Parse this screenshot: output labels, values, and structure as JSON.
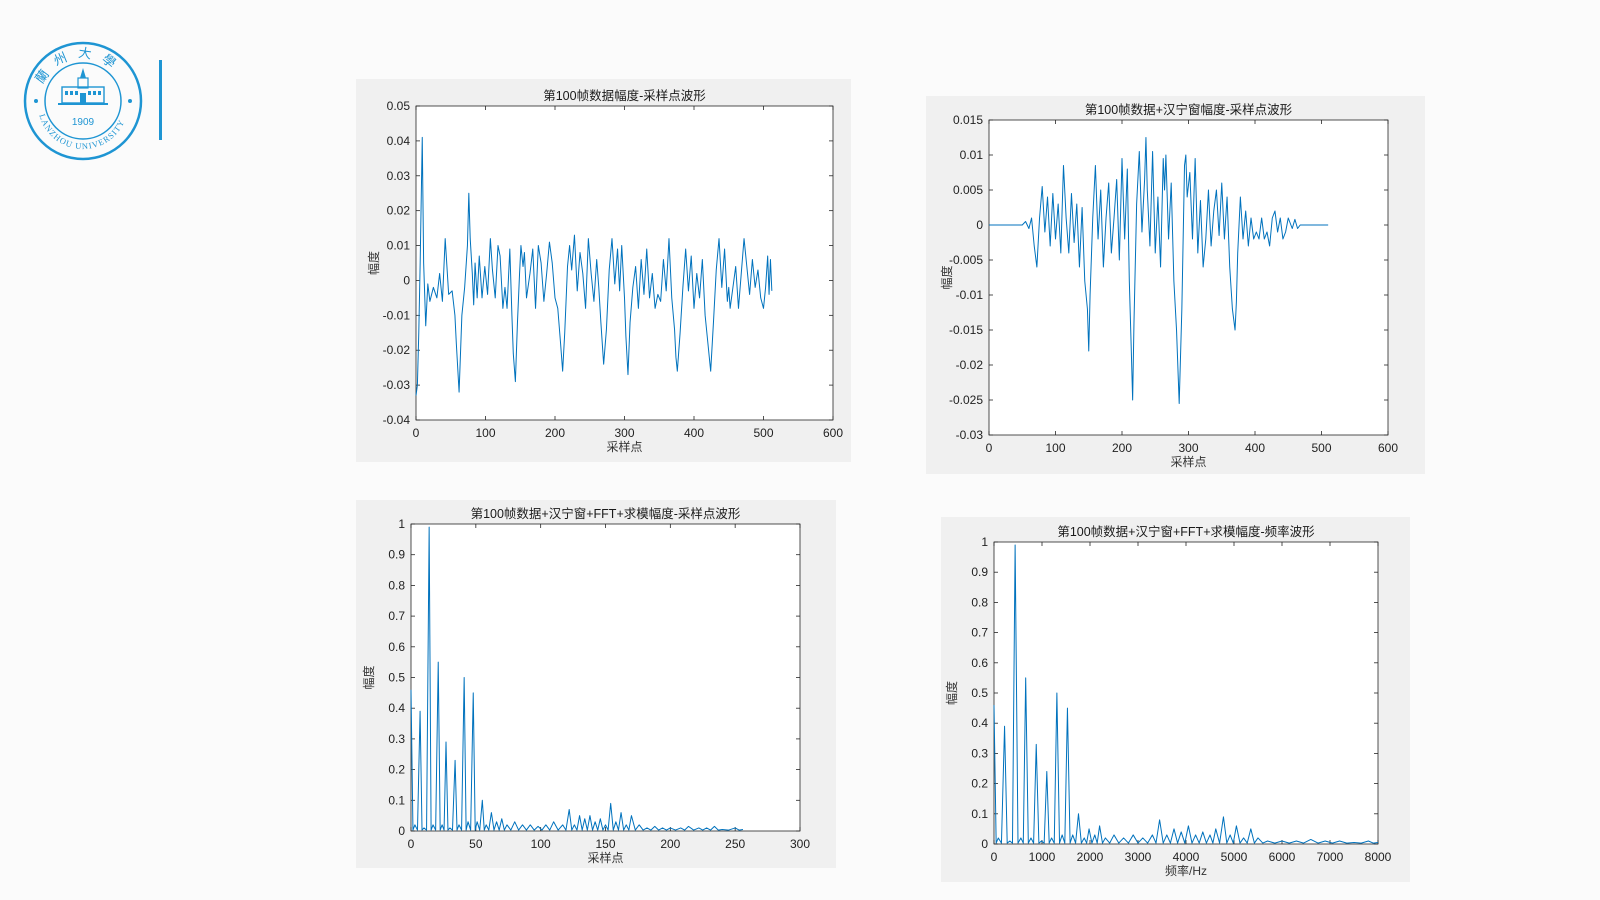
{
  "logo": {
    "year": "1909",
    "name_en": "LANZHOU UNIVERSITY",
    "name_cn": "蘭州大學",
    "color": "#1e95d3"
  },
  "line_color": "#0072bd",
  "chart_data": [
    {
      "type": "line",
      "title": "第100帧数据幅度-采样点波形",
      "xlabel": "采样点",
      "ylabel": "幅度",
      "xlim": [
        0,
        600
      ],
      "ylim": [
        -0.04,
        0.05
      ],
      "xticks": [
        "0",
        "100",
        "200",
        "300",
        "400",
        "500",
        "600"
      ],
      "yticks": [
        "-0.04",
        "-0.03",
        "-0.02",
        "-0.01",
        "0",
        "0.01",
        "0.02",
        "0.03",
        "0.04",
        "0.05"
      ],
      "series": [
        {
          "x": [
            0,
            2,
            4,
            6,
            9,
            11,
            14,
            17,
            20,
            25,
            30,
            34,
            38,
            42,
            47,
            52,
            56,
            58,
            62,
            66,
            70,
            74,
            76,
            78,
            81,
            83,
            85,
            88,
            91,
            95,
            99,
            103,
            107,
            110,
            114,
            118,
            121,
            125,
            128,
            131,
            135,
            138,
            140,
            143,
            146,
            149,
            151,
            154,
            156,
            159,
            164,
            168,
            172,
            176,
            180,
            184,
            188,
            192,
            196,
            200,
            204,
            208,
            211,
            214,
            218,
            221,
            224,
            228,
            232,
            236,
            240,
            244,
            248,
            252,
            256,
            260,
            263,
            266,
            270,
            274,
            278,
            282,
            286,
            290,
            293,
            296,
            300,
            302,
            305,
            308,
            312,
            316,
            320,
            324,
            328,
            332,
            336,
            340,
            344,
            348,
            352,
            356,
            360,
            364,
            368,
            372,
            374,
            376,
            380,
            384,
            388,
            392,
            396,
            400,
            404,
            408,
            412,
            416,
            420,
            424,
            428,
            432,
            436,
            440,
            444,
            448,
            450,
            452,
            456,
            460,
            464,
            468,
            472,
            476,
            480,
            484,
            488,
            492,
            496,
            500,
            503,
            506,
            508,
            510,
            512
          ],
          "y": [
            -0.033,
            -0.03,
            -0.015,
            0.005,
            0.041,
            0.005,
            -0.013,
            -0.001,
            -0.006,
            -0.002,
            -0.005,
            0.002,
            -0.006,
            0.012,
            -0.004,
            -0.003,
            -0.01,
            -0.018,
            -0.032,
            -0.01,
            -0.002,
            0.01,
            0.025,
            0.012,
            0.002,
            -0.007,
            0.005,
            -0.005,
            0.007,
            -0.005,
            0.004,
            -0.004,
            0.012,
            0.003,
            -0.005,
            0.01,
            0.007,
            -0.008,
            -0.002,
            -0.008,
            0.009,
            -0.01,
            -0.021,
            -0.029,
            -0.012,
            0.002,
            0.01,
            0.004,
            0.008,
            -0.005,
            0.002,
            0.009,
            -0.008,
            0.01,
            0.005,
            -0.006,
            0.002,
            0.011,
            0.005,
            -0.005,
            -0.008,
            -0.018,
            -0.026,
            -0.015,
            0.004,
            0.01,
            0.003,
            0.013,
            -0.003,
            0.008,
            0.002,
            -0.008,
            0.012,
            0.002,
            -0.006,
            0.006,
            -0.002,
            -0.012,
            -0.024,
            -0.014,
            0.003,
            0.012,
            -0.001,
            0.009,
            -0.003,
            0.01,
            -0.005,
            -0.016,
            -0.027,
            -0.012,
            -0.002,
            0.004,
            -0.008,
            0.006,
            -0.004,
            0.009,
            -0.005,
            0.002,
            -0.008,
            -0.004,
            -0.006,
            0.006,
            -0.003,
            0.012,
            -0.005,
            -0.014,
            -0.022,
            -0.026,
            -0.015,
            -0.002,
            0.009,
            -0.003,
            0.007,
            -0.008,
            0.002,
            -0.005,
            0.006,
            -0.01,
            -0.018,
            -0.026,
            -0.012,
            0.003,
            0.012,
            -0.002,
            0.009,
            -0.006,
            -0.002,
            -0.008,
            -0.002,
            0.004,
            -0.008,
            0.002,
            0.012,
            0.004,
            -0.004,
            0.006,
            -0.002,
            0.003,
            -0.005,
            -0.008,
            -0.002,
            0.007,
            -0.004,
            0.006,
            -0.003
          ]
        }
      ]
    },
    {
      "type": "line",
      "title": "第100帧数据+汉宁窗幅度-采样点波形",
      "xlabel": "采样点",
      "ylabel": "幅度",
      "xlim": [
        0,
        600
      ],
      "ylim": [
        -0.03,
        0.015
      ],
      "xticks": [
        "0",
        "100",
        "200",
        "300",
        "400",
        "500",
        "600"
      ],
      "yticks": [
        "-0.03",
        "-0.025",
        "-0.02",
        "-0.015",
        "-0.01",
        "-0.005",
        "0",
        "0.005",
        "0.01",
        "0.015"
      ],
      "series": [
        {
          "x": [
            0,
            20,
            40,
            50,
            55,
            60,
            64,
            68,
            72,
            76,
            80,
            84,
            88,
            92,
            96,
            100,
            104,
            108,
            112,
            116,
            120,
            124,
            128,
            132,
            136,
            140,
            144,
            148,
            150,
            152,
            156,
            160,
            164,
            168,
            172,
            176,
            180,
            184,
            188,
            192,
            196,
            200,
            204,
            208,
            211,
            214,
            216,
            218,
            222,
            226,
            230,
            234,
            236,
            238,
            242,
            246,
            250,
            254,
            258,
            262,
            264,
            266,
            270,
            274,
            278,
            282,
            286,
            290,
            294,
            296,
            298,
            302,
            306,
            310,
            314,
            318,
            322,
            326,
            330,
            334,
            338,
            342,
            346,
            350,
            354,
            358,
            362,
            366,
            370,
            372,
            374,
            378,
            382,
            386,
            390,
            394,
            398,
            402,
            406,
            410,
            414,
            418,
            422,
            426,
            430,
            434,
            438,
            442,
            446,
            450,
            456,
            460,
            464,
            468,
            472,
            476,
            480,
            490,
            510
          ],
          "y": [
            0,
            0,
            0,
            0,
            0.0005,
            -0.0005,
            0.001,
            -0.003,
            -0.006,
            0.001,
            0.0055,
            -0.001,
            0.004,
            -0.003,
            0.0045,
            -0.002,
            0.003,
            -0.004,
            0.0085,
            0.001,
            -0.004,
            0.0045,
            -0.0025,
            0.003,
            -0.006,
            0.0025,
            -0.008,
            -0.012,
            -0.018,
            -0.01,
            0.001,
            0.0085,
            -0.002,
            0.005,
            -0.006,
            0.001,
            0.006,
            -0.004,
            0.001,
            0.0065,
            -0.005,
            0.0095,
            -0.002,
            0.008,
            -0.008,
            -0.018,
            -0.025,
            -0.014,
            0.003,
            0.0105,
            -0.001,
            0.0065,
            0.0125,
            0.005,
            -0.003,
            0.0105,
            -0.004,
            0.004,
            -0.006,
            0.0095,
            0.005,
            0.01,
            -0.002,
            0.006,
            -0.008,
            -0.015,
            -0.0255,
            -0.012,
            0.0085,
            0.01,
            0.004,
            0.0075,
            -0.002,
            0.0095,
            -0.004,
            0.0035,
            -0.006,
            -0.002,
            0.005,
            -0.003,
            0.002,
            0.005,
            -0.0015,
            0.006,
            -0.002,
            0.004,
            -0.006,
            -0.012,
            -0.015,
            -0.011,
            -0.004,
            0.004,
            -0.002,
            0.002,
            -0.003,
            0.001,
            -0.002,
            -0.001,
            -0.002,
            0.001,
            -0.002,
            -0.001,
            -0.003,
            0.001,
            0.002,
            -0.001,
            0.001,
            -0.002,
            -0.001,
            0.001,
            -0.0005,
            0.0008,
            -0.0005,
            0,
            0,
            0,
            0,
            0,
            0
          ]
        }
      ]
    },
    {
      "type": "line",
      "title": "第100帧数据+汉宁窗+FFT+求模幅度-采样点波形",
      "xlabel": "采样点",
      "ylabel": "幅度",
      "xlim": [
        0,
        300
      ],
      "ylim": [
        0,
        1
      ],
      "xticks": [
        "0",
        "50",
        "100",
        "150",
        "200",
        "250",
        "300"
      ],
      "yticks": [
        "0",
        "0.1",
        "0.2",
        "0.3",
        "0.4",
        "0.5",
        "0.6",
        "0.7",
        "0.8",
        "0.9",
        "1"
      ],
      "peaks": [
        [
          0,
          0.46
        ],
        [
          3,
          0.02
        ],
        [
          7,
          0.39
        ],
        [
          10,
          0.01
        ],
        [
          14,
          0.99
        ],
        [
          17,
          0.02
        ],
        [
          21,
          0.55
        ],
        [
          24,
          0.02
        ],
        [
          27,
          0.29
        ],
        [
          30,
          0.01
        ],
        [
          34,
          0.23
        ],
        [
          37,
          0.02
        ],
        [
          41,
          0.5
        ],
        [
          44,
          0.03
        ],
        [
          48,
          0.45
        ],
        [
          51,
          0.03
        ],
        [
          55,
          0.1
        ],
        [
          58,
          0.02
        ],
        [
          62,
          0.06
        ],
        [
          66,
          0.03
        ],
        [
          70,
          0.04
        ],
        [
          74,
          0.02
        ],
        [
          80,
          0.03
        ],
        [
          86,
          0.02
        ],
        [
          92,
          0.02
        ],
        [
          98,
          0.015
        ],
        [
          104,
          0.02
        ],
        [
          110,
          0.03
        ],
        [
          117,
          0.02
        ],
        [
          122,
          0.07
        ],
        [
          126,
          0.02
        ],
        [
          130,
          0.05
        ],
        [
          134,
          0.04
        ],
        [
          138,
          0.05
        ],
        [
          142,
          0.03
        ],
        [
          146,
          0.04
        ],
        [
          150,
          0.02
        ],
        [
          154,
          0.09
        ],
        [
          158,
          0.03
        ],
        [
          162,
          0.06
        ],
        [
          166,
          0.02
        ],
        [
          170,
          0.05
        ],
        [
          176,
          0.02
        ],
        [
          182,
          0.01
        ],
        [
          188,
          0.015
        ],
        [
          194,
          0.01
        ],
        [
          200,
          0.01
        ],
        [
          208,
          0.01
        ],
        [
          214,
          0.015
        ],
        [
          222,
          0.01
        ],
        [
          228,
          0.01
        ],
        [
          234,
          0.015
        ],
        [
          240,
          0.005
        ],
        [
          250,
          0.01
        ],
        [
          256,
          0.005
        ]
      ]
    },
    {
      "type": "line",
      "title": "第100帧数据+汉宁窗+FFT+求模幅度-频率波形",
      "xlabel": "频率/Hz",
      "ylabel": "幅度",
      "xlim": [
        0,
        8000
      ],
      "ylim": [
        0,
        1
      ],
      "xticks": [
        "0",
        "1000",
        "2000",
        "3000",
        "4000",
        "5000",
        "6000",
        "7000",
        "8000"
      ],
      "yticks": [
        "0",
        "0.1",
        "0.2",
        "0.3",
        "0.4",
        "0.5",
        "0.6",
        "0.7",
        "0.8",
        "0.9",
        "1"
      ],
      "peaks": [
        [
          0,
          0.46
        ],
        [
          90,
          0.02
        ],
        [
          220,
          0.39
        ],
        [
          330,
          0.01
        ],
        [
          440,
          0.99
        ],
        [
          560,
          0.02
        ],
        [
          660,
          0.55
        ],
        [
          770,
          0.02
        ],
        [
          880,
          0.33
        ],
        [
          990,
          0.01
        ],
        [
          1100,
          0.24
        ],
        [
          1200,
          0.02
        ],
        [
          1310,
          0.5
        ],
        [
          1420,
          0.03
        ],
        [
          1530,
          0.45
        ],
        [
          1640,
          0.03
        ],
        [
          1760,
          0.1
        ],
        [
          1880,
          0.02
        ],
        [
          1980,
          0.05
        ],
        [
          2100,
          0.03
        ],
        [
          2200,
          0.06
        ],
        [
          2320,
          0.02
        ],
        [
          2500,
          0.03
        ],
        [
          2700,
          0.02
        ],
        [
          2900,
          0.03
        ],
        [
          3100,
          0.02
        ],
        [
          3300,
          0.03
        ],
        [
          3450,
          0.08
        ],
        [
          3600,
          0.03
        ],
        [
          3750,
          0.05
        ],
        [
          3900,
          0.04
        ],
        [
          4050,
          0.06
        ],
        [
          4200,
          0.03
        ],
        [
          4350,
          0.04
        ],
        [
          4500,
          0.03
        ],
        [
          4620,
          0.05
        ],
        [
          4780,
          0.09
        ],
        [
          4920,
          0.03
        ],
        [
          5050,
          0.06
        ],
        [
          5200,
          0.02
        ],
        [
          5350,
          0.05
        ],
        [
          5500,
          0.02
        ],
        [
          5700,
          0.01
        ],
        [
          6000,
          0.01
        ],
        [
          6300,
          0.01
        ],
        [
          6600,
          0.015
        ],
        [
          6900,
          0.01
        ],
        [
          7200,
          0.01
        ],
        [
          7500,
          0.005
        ],
        [
          7800,
          0.01
        ],
        [
          8000,
          0.005
        ]
      ]
    }
  ]
}
